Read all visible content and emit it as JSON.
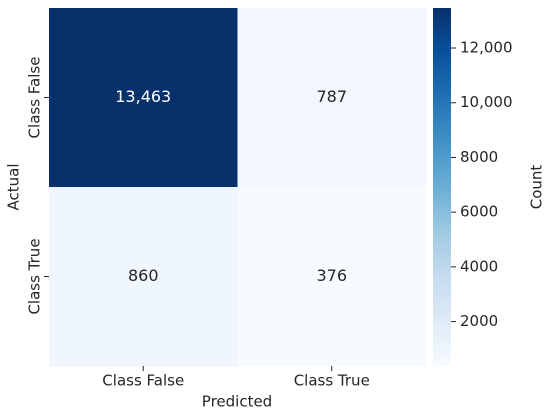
{
  "chart_data": {
    "type": "heatmap",
    "x_categories": [
      "Class False",
      "Class True"
    ],
    "y_categories": [
      "Class False",
      "Class True"
    ],
    "xlabel": "Predicted",
    "ylabel": "Actual",
    "values": [
      [
        13463,
        787
      ],
      [
        860,
        376
      ]
    ],
    "value_labels": [
      [
        "13,463",
        "787"
      ],
      [
        "860",
        "376"
      ]
    ],
    "colormap": "Blues",
    "colorbar_label": "Count",
    "clim": [
      376,
      13463
    ],
    "cticks": [
      {
        "value": 2000,
        "label": "2000"
      },
      {
        "value": 4000,
        "label": "4000"
      },
      {
        "value": 6000,
        "label": "6000"
      },
      {
        "value": 8000,
        "label": "8000"
      },
      {
        "value": 10000,
        "label": "10,000"
      },
      {
        "value": 12000,
        "label": "12,000"
      }
    ]
  }
}
